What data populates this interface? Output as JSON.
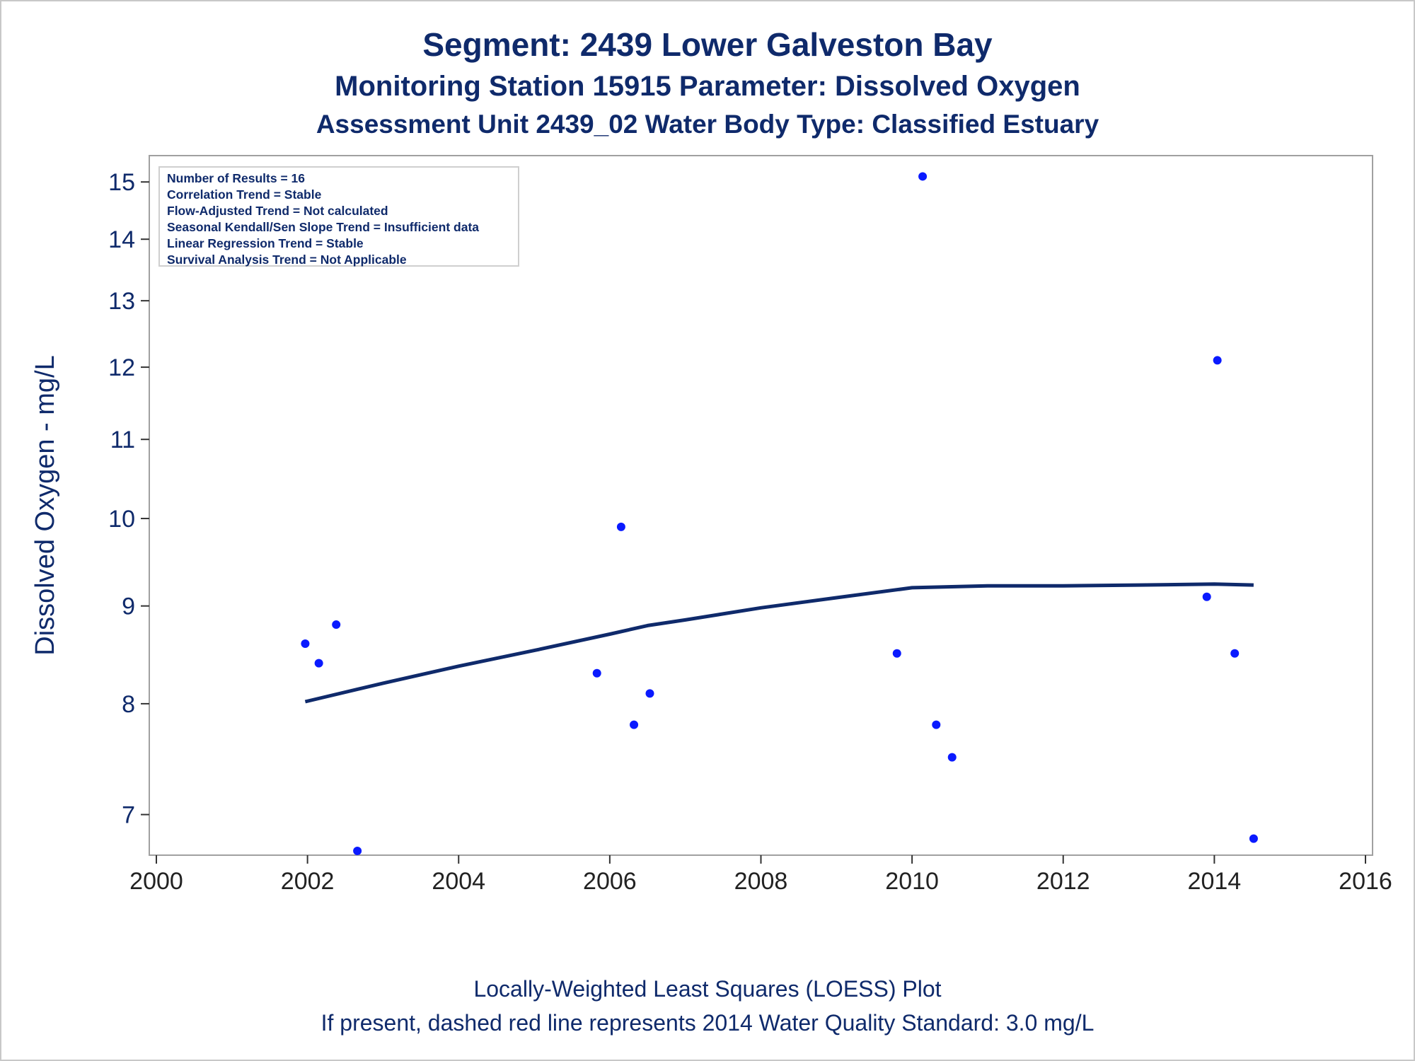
{
  "titles": {
    "line1": "Segment: 2439  Lower Galveston Bay",
    "line2": "Monitoring Station 15915 Parameter: Dissolved Oxygen",
    "line3": "Assessment Unit 2439_02   Water Body Type: Classified Estuary"
  },
  "footnotes": {
    "line1": "Locally-Weighted Least Squares (LOESS) Plot",
    "line2": "If present, dashed red line represents 2014 Water Quality Standard: 3.0 mg/L"
  },
  "inset_stats": [
    "Number of Results = 16",
    "Correlation Trend = Stable",
    "Flow-Adjusted Trend = Not calculated",
    "Seasonal Kendall/Sen Slope Trend = Insufficient data",
    "Linear Regression Trend = Stable",
    "Survival Analysis Trend = Not Applicable"
  ],
  "colors": {
    "title": "#0f2a6b",
    "points": "#0a1aff",
    "loess": "#0f2a6b",
    "frame": "#a0a0a0"
  },
  "chart_data": {
    "type": "scatter",
    "ylabel": "Dissolved Oxygen - mg/L",
    "xlabel": "",
    "y_scale": "log",
    "xlim": [
      2000,
      2016
    ],
    "ylim": [
      6.7,
      15.3
    ],
    "x_ticks": [
      2000,
      2002,
      2004,
      2006,
      2008,
      2010,
      2012,
      2014,
      2016
    ],
    "y_ticks": [
      7,
      8,
      9,
      10,
      11,
      12,
      13,
      14,
      15
    ],
    "points": [
      {
        "x": 2001.97,
        "y": 8.6
      },
      {
        "x": 2002.15,
        "y": 8.4
      },
      {
        "x": 2002.38,
        "y": 8.8
      },
      {
        "x": 2002.66,
        "y": 6.7
      },
      {
        "x": 2005.83,
        "y": 8.3
      },
      {
        "x": 2006.15,
        "y": 9.9
      },
      {
        "x": 2006.32,
        "y": 7.8
      },
      {
        "x": 2006.53,
        "y": 8.1
      },
      {
        "x": 2009.8,
        "y": 8.5
      },
      {
        "x": 2010.14,
        "y": 15.1
      },
      {
        "x": 2010.32,
        "y": 7.8
      },
      {
        "x": 2010.53,
        "y": 7.5
      },
      {
        "x": 2013.9,
        "y": 9.1
      },
      {
        "x": 2014.04,
        "y": 12.1
      },
      {
        "x": 2014.27,
        "y": 8.5
      },
      {
        "x": 2014.52,
        "y": 6.8
      }
    ],
    "loess": [
      {
        "x": 2001.97,
        "y": 8.02
      },
      {
        "x": 2003.0,
        "y": 8.2
      },
      {
        "x": 2004.0,
        "y": 8.37
      },
      {
        "x": 2005.0,
        "y": 8.53
      },
      {
        "x": 2006.0,
        "y": 8.7
      },
      {
        "x": 2006.5,
        "y": 8.79
      },
      {
        "x": 2007.0,
        "y": 8.85
      },
      {
        "x": 2008.0,
        "y": 8.98
      },
      {
        "x": 2009.0,
        "y": 9.09
      },
      {
        "x": 2010.0,
        "y": 9.2
      },
      {
        "x": 2011.0,
        "y": 9.22
      },
      {
        "x": 2012.0,
        "y": 9.22
      },
      {
        "x": 2013.0,
        "y": 9.23
      },
      {
        "x": 2014.0,
        "y": 9.24
      },
      {
        "x": 2014.52,
        "y": 9.23
      }
    ]
  }
}
